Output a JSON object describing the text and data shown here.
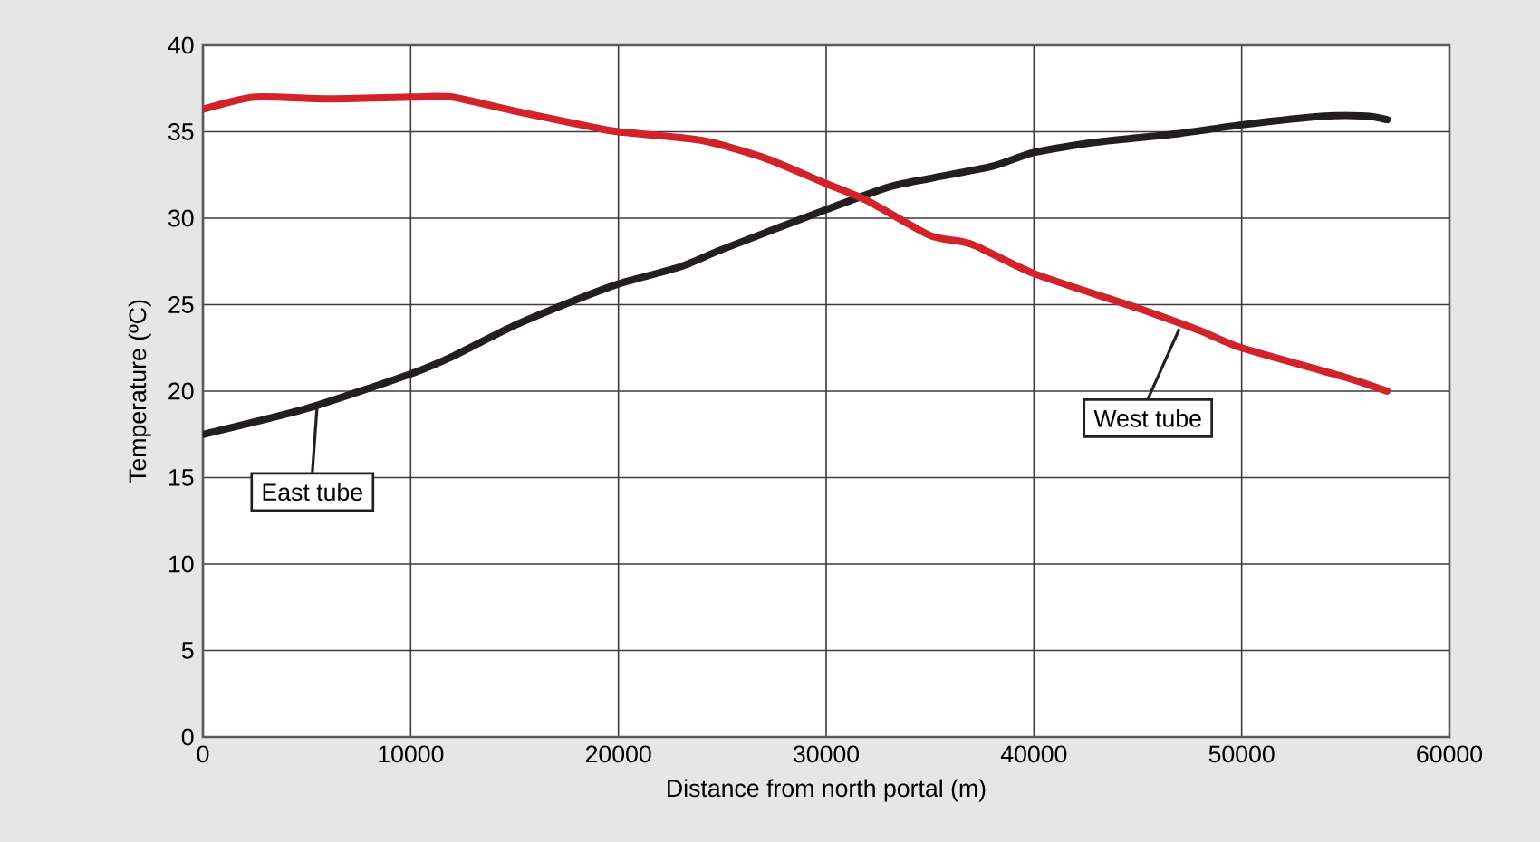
{
  "chart_data": {
    "type": "line",
    "xlabel": "Distance from north portal (m)",
    "ylabel": "Temperature (ºC)",
    "xlim": [
      0,
      60000
    ],
    "xticks": [
      0,
      10000,
      20000,
      30000,
      40000,
      50000,
      60000
    ],
    "ylim": [
      0,
      40
    ],
    "yticks": [
      0,
      5,
      10,
      15,
      20,
      25,
      30,
      35,
      40
    ],
    "grid": true,
    "marker": "none",
    "line_style": "solid",
    "series": [
      {
        "color": "#231f20",
        "x": [
          0,
          5000,
          10000,
          12000,
          15000,
          18000,
          20000,
          23000,
          25000,
          30000,
          33000,
          35000,
          38000,
          40000,
          43000,
          47000,
          50000,
          54000,
          56000,
          57000
        ],
        "values": [
          17.5,
          19,
          21,
          22,
          23.8,
          25.3,
          26.2,
          27.2,
          28.2,
          30.5,
          31.8,
          32.3,
          33,
          33.8,
          34.4,
          34.9,
          35.4,
          35.9,
          35.9,
          35.7
        ]
      },
      {
        "color": "#d2232a",
        "x": [
          0,
          2500,
          6000,
          10000,
          12000,
          15000,
          19000,
          20000,
          24000,
          27000,
          30000,
          32000,
          35000,
          37000,
          40000,
          45000,
          48000,
          50000,
          55000,
          57000
        ],
        "values": [
          36.3,
          37,
          36.9,
          37,
          37,
          36.2,
          35.2,
          35,
          34.5,
          33.5,
          32,
          31,
          29,
          28.5,
          26.8,
          24.8,
          23.5,
          22.5,
          20.8,
          20
        ]
      }
    ],
    "annotations": [
      {
        "text": "East tube",
        "x": 5500,
        "y": 19.2
      },
      {
        "text": "West tube",
        "x": 47000,
        "y": 23.6
      }
    ]
  }
}
